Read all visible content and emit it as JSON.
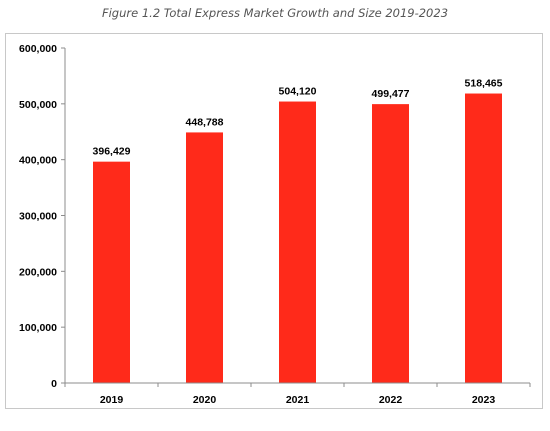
{
  "caption": "Figure 1.2 Total Express Market Growth and Size 2019-2023",
  "colors": {
    "bar": "#ff2a1a",
    "axis": "#8c8c8c",
    "frame": "#c8c8c8"
  },
  "chart_data": {
    "type": "bar",
    "title": "",
    "xlabel": "",
    "ylabel": "",
    "categories": [
      "2019",
      "2020",
      "2021",
      "2022",
      "2023"
    ],
    "values": [
      396429,
      448788,
      504120,
      499477,
      518465
    ],
    "data_labels": [
      "396,429",
      "448,788",
      "504,120",
      "499,477",
      "518,465"
    ],
    "ylim": [
      0,
      600000
    ],
    "yticks": [
      0,
      100000,
      200000,
      300000,
      400000,
      500000,
      600000
    ],
    "ytick_labels": [
      "0",
      "100,000",
      "200,000",
      "300,000",
      "400,000",
      "500,000",
      "600,000"
    ],
    "grid": false,
    "legend": "none"
  }
}
